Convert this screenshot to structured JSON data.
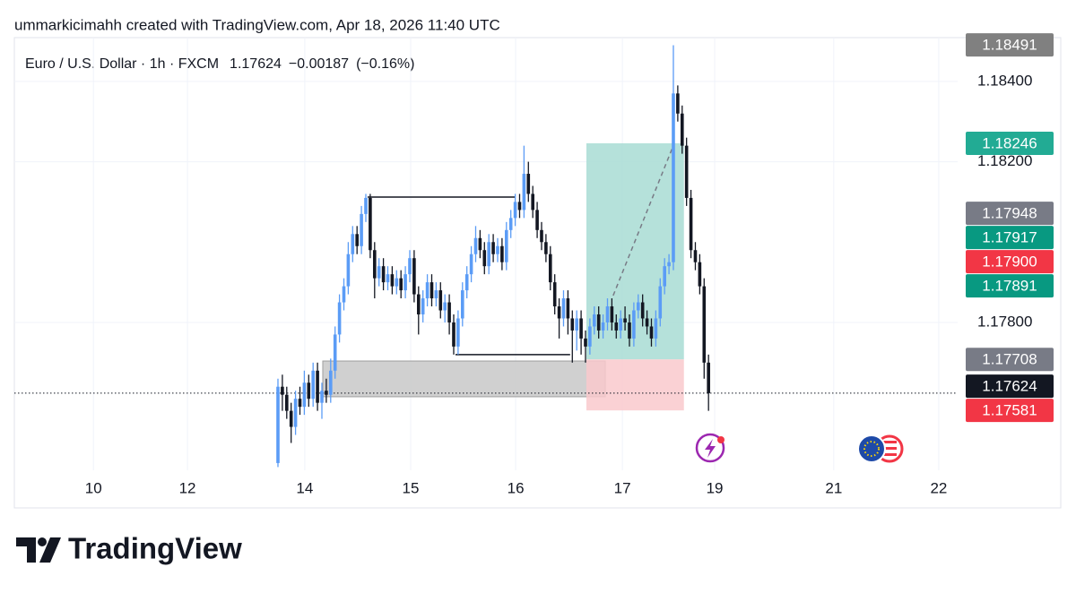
{
  "chart_data": {
    "type": "candlestick",
    "caption": "ummarkicimahh created with TradingView.com, Apr 18, 2026 11:40 UTC",
    "legend": {
      "symbol": "Euro / U.S. Dollar · 1h · FXCM",
      "last": 1.17624,
      "change": {
        "value": -0.00187,
        "label": "−0.00187"
      },
      "change_pct": {
        "value": -0.16,
        "label": "(−0.16%)"
      }
    },
    "brand": "TradingView",
    "x": [
      0,
      1,
      2,
      3,
      4,
      5,
      6,
      7,
      8,
      9,
      10,
      11,
      12,
      13,
      14,
      15,
      16,
      17,
      18,
      19,
      20,
      21,
      22,
      23,
      24,
      25,
      26,
      27,
      28,
      29,
      30,
      31,
      32,
      33,
      34,
      35,
      36,
      37,
      38,
      39,
      40,
      41,
      42,
      43,
      44,
      45,
      46,
      47,
      48,
      49,
      50,
      51,
      52,
      53,
      54,
      55,
      56,
      57,
      58,
      59,
      60,
      61,
      62,
      63,
      64,
      65,
      66,
      67,
      68,
      69,
      70,
      71,
      72,
      73,
      74,
      75,
      76,
      77,
      78,
      79,
      80,
      81,
      82,
      83,
      84,
      85,
      86,
      87,
      88,
      89,
      90,
      91,
      92,
      93,
      94,
      95,
      96,
      97,
      98
    ],
    "open": [
      1.1745,
      1.1764,
      1.1762,
      1.1758,
      1.1754,
      1.1761,
      1.1759,
      1.1765,
      1.1761,
      1.1768,
      1.176,
      1.1763,
      1.1762,
      1.1768,
      1.1777,
      1.1785,
      1.1789,
      1.1797,
      1.1802,
      1.1799,
      1.1807,
      1.1811,
      1.1798,
      1.1791,
      1.1794,
      1.179,
      1.1792,
      1.1789,
      1.1791,
      1.1788,
      1.1792,
      1.1796,
      1.1787,
      1.1782,
      1.1786,
      1.179,
      1.1786,
      1.1788,
      1.1783,
      1.1785,
      1.178,
      1.1774,
      1.1781,
      1.1788,
      1.1792,
      1.1797,
      1.1801,
      1.1798,
      1.1794,
      1.18,
      1.1797,
      1.1799,
      1.1795,
      1.1803,
      1.1806,
      1.181,
      1.1808,
      1.1817,
      1.1812,
      1.1808,
      1.1803,
      1.18,
      1.1797,
      1.179,
      1.1784,
      1.1781,
      1.1786,
      1.1781,
      1.1778,
      1.1781,
      1.1776,
      1.1774,
      1.1779,
      1.1782,
      1.1778,
      1.178,
      1.1784,
      1.178,
      1.1778,
      1.1781,
      1.178,
      1.1776,
      1.1783,
      1.1785,
      1.1781,
      1.1779,
      1.1776,
      1.1781,
      1.1789,
      1.1794,
      1.1795,
      1.1837,
      1.1832,
      1.1824,
      1.1811,
      1.1798,
      1.1795,
      1.1789,
      1.177
    ],
    "high": [
      1.1766,
      1.1767,
      1.1764,
      1.176,
      1.1763,
      1.1764,
      1.1768,
      1.1767,
      1.177,
      1.177,
      1.1765,
      1.1766,
      1.1771,
      1.1779,
      1.1787,
      1.1791,
      1.18,
      1.1804,
      1.1804,
      1.1809,
      1.1812,
      1.1812,
      1.18,
      1.1796,
      1.1796,
      1.1794,
      1.1794,
      1.1793,
      1.1793,
      1.1794,
      1.1798,
      1.1798,
      1.1789,
      1.1788,
      1.1792,
      1.1792,
      1.179,
      1.179,
      1.1787,
      1.1787,
      1.1782,
      1.1783,
      1.179,
      1.1794,
      1.1799,
      1.1804,
      1.1803,
      1.18,
      1.1802,
      1.1802,
      1.1801,
      1.1801,
      1.1805,
      1.1808,
      1.1812,
      1.1812,
      1.1824,
      1.182,
      1.1814,
      1.181,
      1.1805,
      1.1802,
      1.1799,
      1.1792,
      1.1786,
      1.1788,
      1.1788,
      1.1783,
      1.1783,
      1.1783,
      1.1778,
      1.1781,
      1.1784,
      1.1784,
      1.1782,
      1.1786,
      1.1786,
      1.1782,
      1.1783,
      1.1784,
      1.1782,
      1.1785,
      1.1787,
      1.1787,
      1.1783,
      1.1781,
      1.1783,
      1.1791,
      1.1796,
      1.1797,
      1.1849,
      1.1839,
      1.1834,
      1.1826,
      1.1813,
      1.18,
      1.1797,
      1.1791,
      1.1772
    ],
    "low": [
      1.1744,
      1.1758,
      1.1756,
      1.175,
      1.1752,
      1.1757,
      1.1757,
      1.1759,
      1.1759,
      1.1758,
      1.1756,
      1.176,
      1.176,
      1.1766,
      1.1775,
      1.1783,
      1.1787,
      1.1795,
      1.1797,
      1.1797,
      1.1805,
      1.1796,
      1.1786,
      1.1789,
      1.1788,
      1.1788,
      1.1787,
      1.1787,
      1.1786,
      1.1786,
      1.179,
      1.1785,
      1.1777,
      1.178,
      1.1784,
      1.1784,
      1.1784,
      1.1781,
      1.178,
      1.1777,
      1.1772,
      1.1772,
      1.1779,
      1.1786,
      1.179,
      1.1795,
      1.1796,
      1.1792,
      1.1792,
      1.1795,
      1.1795,
      1.1793,
      1.1793,
      1.1801,
      1.1804,
      1.1806,
      1.1806,
      1.181,
      1.1806,
      1.1801,
      1.1798,
      1.1795,
      1.1788,
      1.1782,
      1.1776,
      1.1779,
      1.1777,
      1.177,
      1.1773,
      1.1772,
      1.177,
      1.1772,
      1.1777,
      1.1776,
      1.1776,
      1.1778,
      1.1778,
      1.1776,
      1.1776,
      1.1778,
      1.1774,
      1.1774,
      1.1781,
      1.1779,
      1.1777,
      1.1774,
      1.1774,
      1.1779,
      1.1787,
      1.1792,
      1.1793,
      1.183,
      1.1822,
      1.1809,
      1.1796,
      1.1793,
      1.1787,
      1.1766,
      1.1758
    ],
    "close": [
      1.1764,
      1.1762,
      1.1758,
      1.1754,
      1.1761,
      1.1759,
      1.1765,
      1.1761,
      1.1768,
      1.176,
      1.1763,
      1.1762,
      1.1768,
      1.1777,
      1.1785,
      1.1789,
      1.1797,
      1.1802,
      1.1799,
      1.1807,
      1.1811,
      1.1798,
      1.1791,
      1.1794,
      1.179,
      1.1792,
      1.1789,
      1.1791,
      1.1788,
      1.1792,
      1.1796,
      1.1787,
      1.1782,
      1.1786,
      1.179,
      1.1786,
      1.1788,
      1.1783,
      1.1785,
      1.178,
      1.1774,
      1.1781,
      1.1788,
      1.1792,
      1.1797,
      1.1801,
      1.1798,
      1.1794,
      1.18,
      1.1797,
      1.1799,
      1.1795,
      1.1803,
      1.1806,
      1.181,
      1.1808,
      1.1817,
      1.1812,
      1.1808,
      1.1803,
      1.18,
      1.1797,
      1.179,
      1.1784,
      1.1781,
      1.1786,
      1.1781,
      1.1778,
      1.1781,
      1.1776,
      1.1774,
      1.1779,
      1.1782,
      1.1778,
      1.178,
      1.1784,
      1.178,
      1.1778,
      1.1781,
      1.178,
      1.1776,
      1.1783,
      1.1785,
      1.1781,
      1.1779,
      1.1776,
      1.1781,
      1.1789,
      1.1794,
      1.1795,
      1.1837,
      1.1832,
      1.1824,
      1.1811,
      1.1798,
      1.1795,
      1.1789,
      1.177,
      1.17624
    ],
    "up_color": "#5b9cf6",
    "down_color": "#131722",
    "xlim": [
      -60,
      154.7
    ],
    "ylim": [
      1.17432,
      1.18509
    ],
    "xticks": [
      {
        "value": -42,
        "label": "10"
      },
      {
        "value": -20.6,
        "label": "12"
      },
      {
        "value": 6.1,
        "label": "14"
      },
      {
        "value": 30.2,
        "label": "15"
      },
      {
        "value": 54.1,
        "label": "16"
      },
      {
        "value": 78.4,
        "label": "17"
      },
      {
        "value": 99.4,
        "label": "19"
      },
      {
        "value": 126.5,
        "label": "21"
      },
      {
        "value": 150.4,
        "label": "22"
      }
    ],
    "yticks": [
      {
        "value": 1.184,
        "label": "1.18400"
      },
      {
        "value": 1.182,
        "label": "1.18200"
      },
      {
        "value": 1.178,
        "label": "1.17800"
      }
    ],
    "grid": true,
    "price_labels": [
      {
        "value": 1.18491,
        "color": "#808080"
      },
      {
        "value": 1.18246,
        "color": "#22ab94"
      },
      {
        "value": 1.17948,
        "color": "#787b86"
      },
      {
        "value": 1.17917,
        "color": "#089981"
      },
      {
        "value": 1.179,
        "label": "1.17900",
        "color": "#f23645"
      },
      {
        "value": 1.17891,
        "color": "#089981"
      },
      {
        "value": 1.17708,
        "color": "#787b86"
      },
      {
        "value": 1.17624,
        "color": "#131722"
      },
      {
        "value": 1.17581,
        "color": "#f23645"
      }
    ],
    "position": {
      "x": [
        70.2,
        92.4
      ],
      "entry": 1.17708,
      "target": 1.18246,
      "stop": 1.17581,
      "target_color": "#a8dcd3",
      "stop_color": "#f9c9cd"
    },
    "zone": {
      "x": [
        10.2,
        74.5
      ],
      "y": [
        1.17615,
        1.17704
      ],
      "color": "#c8c8c8"
    },
    "levels": [
      {
        "x": [
          20.4,
          54.1
        ],
        "value": 1.18112
      },
      {
        "x": [
          40.4,
          66.5
        ],
        "value": 1.1772
      }
    ],
    "trend": {
      "x": [
        76.3,
        90.2
      ],
      "y": [
        1.17867,
        1.18246
      ]
    }
  }
}
